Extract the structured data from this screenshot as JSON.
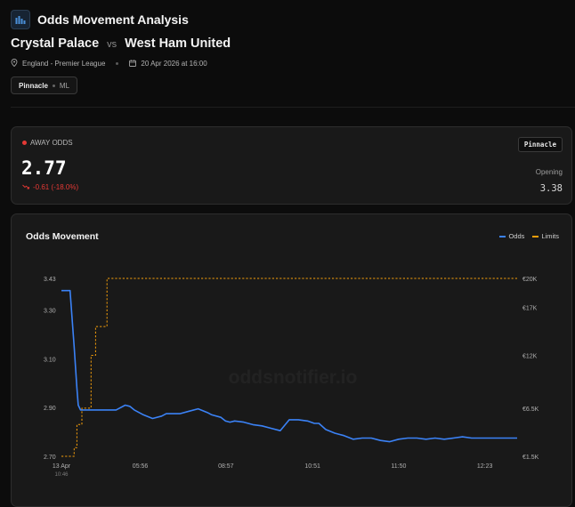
{
  "header": {
    "app_title": "Odds Movement Analysis",
    "home_team": "Crystal Palace",
    "vs": "vs",
    "away_team": "West Ham United",
    "league": "England - Premier League",
    "kickoff": "20 Apr 2026 at 16:00",
    "bookmaker": "Pinnacle",
    "market": "ML"
  },
  "odds_card": {
    "label": "AWAY ODDS",
    "current": "2.77",
    "change": "-0.61 (-18.0%)",
    "bookmaker_badge": "Pinnacle",
    "opening_label": "Opening",
    "opening_value": "3.38"
  },
  "colors": {
    "odds_line": "#3b82f6",
    "limits_line": "#f59e0b",
    "negative": "#e53935"
  },
  "chart_data": {
    "type": "line",
    "title": "Odds Movement",
    "watermark": "oddsnotifier.io",
    "x_ticks": [
      {
        "label": "13 Apr",
        "sublabel": "10:46",
        "t": 0
      },
      {
        "label": "05:56",
        "sublabel": "",
        "t": 0.173
      },
      {
        "label": "08:57",
        "sublabel": "",
        "t": 0.361
      },
      {
        "label": "10:51",
        "sublabel": "",
        "t": 0.551
      },
      {
        "label": "11:50",
        "sublabel": "",
        "t": 0.74
      },
      {
        "label": "12:23",
        "sublabel": "",
        "t": 0.929
      }
    ],
    "y_left": {
      "ticks": [
        2.7,
        2.9,
        3.1,
        3.3,
        3.43
      ],
      "tick_labels": [
        "2.70",
        "2.90",
        "3.10",
        "3.30",
        "3.43"
      ],
      "ylim": [
        2.7,
        3.43
      ]
    },
    "y_right": {
      "ticks": [
        1500,
        6500,
        12000,
        17000,
        20000
      ],
      "tick_labels": [
        "€1.5K",
        "€6.5K",
        "€12K",
        "€17K",
        "€20K"
      ],
      "ylim": [
        1500,
        20000
      ]
    },
    "series": [
      {
        "name": "Odds",
        "axis": "left",
        "style": "solid",
        "x": [
          0,
          0.019,
          0.022,
          0.028,
          0.034,
          0.037,
          0.042,
          0.05,
          0.07,
          0.1,
          0.12,
          0.14,
          0.15,
          0.16,
          0.18,
          0.2,
          0.22,
          0.23,
          0.24,
          0.26,
          0.28,
          0.3,
          0.32,
          0.33,
          0.35,
          0.36,
          0.37,
          0.38,
          0.4,
          0.42,
          0.44,
          0.46,
          0.48,
          0.5,
          0.52,
          0.54,
          0.555,
          0.565,
          0.58,
          0.6,
          0.62,
          0.64,
          0.66,
          0.68,
          0.7,
          0.72,
          0.74,
          0.76,
          0.78,
          0.8,
          0.82,
          0.84,
          0.86,
          0.88,
          0.9,
          0.92,
          0.94,
          0.96,
          0.98,
          1.0
        ],
        "y": [
          3.38,
          3.38,
          3.3,
          3.15,
          2.98,
          2.91,
          2.89,
          2.89,
          2.89,
          2.89,
          2.89,
          2.91,
          2.905,
          2.89,
          2.87,
          2.855,
          2.865,
          2.875,
          2.875,
          2.875,
          2.885,
          2.895,
          2.88,
          2.87,
          2.86,
          2.845,
          2.84,
          2.845,
          2.84,
          2.83,
          2.825,
          2.815,
          2.805,
          2.85,
          2.85,
          2.845,
          2.835,
          2.835,
          2.81,
          2.795,
          2.785,
          2.77,
          2.775,
          2.775,
          2.765,
          2.76,
          2.77,
          2.775,
          2.775,
          2.77,
          2.775,
          2.77,
          2.775,
          2.78,
          2.775,
          2.775,
          2.775,
          2.775,
          2.775,
          2.775
        ]
      },
      {
        "name": "Limits",
        "axis": "right",
        "style": "dashed",
        "x": [
          0,
          0.025,
          0.028,
          0.034,
          0.045,
          0.055,
          0.065,
          0.075,
          0.085,
          0.095,
          0.1,
          1.0
        ],
        "y": [
          1500,
          1500,
          2400,
          4800,
          6500,
          6500,
          12000,
          15000,
          15000,
          15000,
          20000,
          20000
        ]
      }
    ]
  }
}
